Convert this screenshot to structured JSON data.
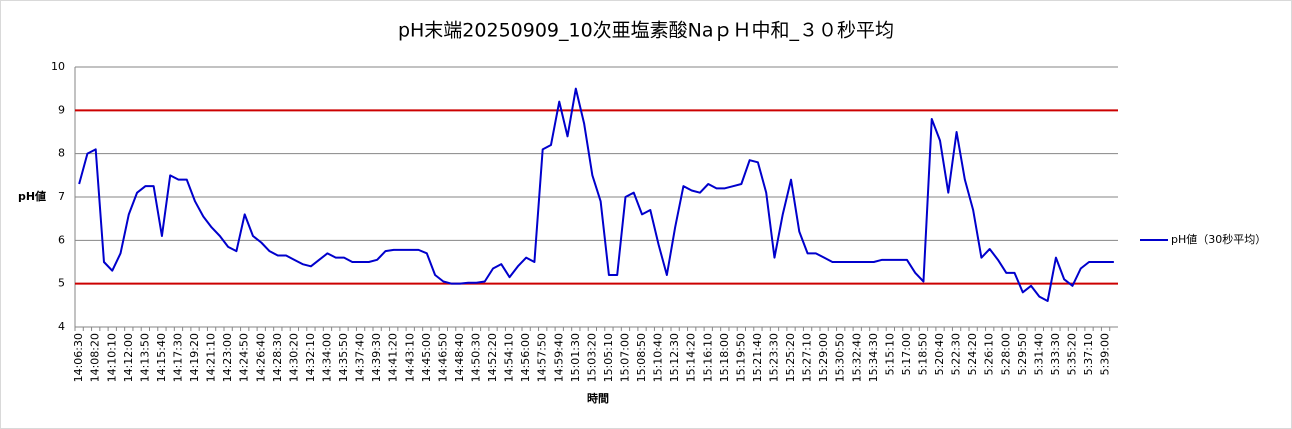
{
  "chart_data": {
    "type": "line",
    "title": "pH末端20250909_10次亜塩素酸NaｐＨ中和_３０秒平均",
    "x_label": "時間",
    "y_label": "pH値",
    "categories": [
      "14:06:30",
      null,
      "14:08:20",
      null,
      "14:10:10",
      null,
      "14:12:00",
      null,
      "14:13:50",
      null,
      "14:15:40",
      null,
      "14:17:30",
      null,
      "14:19:20",
      null,
      "14:21:10",
      null,
      "14:23:00",
      null,
      "14:24:50",
      null,
      "14:26:40",
      null,
      "14:28:30",
      null,
      "14:30:20",
      null,
      "14:32:10",
      null,
      "14:34:00",
      null,
      "14:35:50",
      null,
      "14:37:40",
      null,
      "14:39:30",
      null,
      "14:41:20",
      null,
      "14:43:10",
      null,
      "14:45:00",
      null,
      "14:46:50",
      null,
      "14:48:40",
      null,
      "14:50:30",
      null,
      "14:52:20",
      null,
      "14:54:10",
      null,
      "14:56:00",
      null,
      "14:57:50",
      null,
      "14:59:40",
      null,
      "15:01:30",
      null,
      "15:03:20",
      null,
      "15:05:10",
      null,
      "15:07:00",
      null,
      "15:08:50",
      null,
      "15:10:40",
      null,
      "15:12:30",
      null,
      "15:14:20",
      null,
      "15:16:10",
      null,
      "15:18:00",
      null,
      "15:19:50",
      null,
      "15:21:40",
      null,
      "15:23:30",
      null,
      "15:25:20",
      null,
      "15:27:10",
      null,
      "15:29:00",
      null,
      "15:30:50",
      null,
      "15:32:40",
      null,
      "15:34:30",
      null,
      "5:15:10",
      null,
      "5:17:00",
      null,
      "5:18:50",
      null,
      "5:20:40",
      null,
      "5:22:30",
      null,
      "5:24:20",
      null,
      "5:26:10",
      null,
      "5:28:00",
      null,
      "5:29:50",
      null,
      "5:31:40",
      null,
      "5:33:30",
      null,
      "5:35:20",
      null,
      "5:37:10",
      null,
      "5:39:00",
      null
    ],
    "series": [
      {
        "name": "pH値（30秒平均）",
        "color": "#0000cc",
        "values": [
          7.3,
          8.0,
          8.1,
          5.5,
          5.3,
          5.7,
          6.6,
          7.1,
          7.25,
          7.25,
          6.1,
          7.5,
          7.4,
          7.4,
          6.9,
          6.55,
          6.3,
          6.1,
          5.85,
          5.75,
          6.6,
          6.1,
          5.95,
          5.75,
          5.65,
          5.65,
          5.55,
          5.45,
          5.4,
          5.55,
          5.7,
          5.6,
          5.6,
          5.5,
          5.5,
          5.5,
          5.55,
          5.75,
          5.78,
          5.78,
          5.78,
          5.78,
          5.7,
          5.2,
          5.05,
          5.0,
          5.0,
          5.02,
          5.02,
          5.05,
          5.35,
          5.45,
          5.15,
          5.4,
          5.6,
          5.5,
          8.1,
          8.2,
          9.2,
          8.4,
          9.5,
          8.7,
          7.5,
          6.9,
          5.2,
          5.2,
          7.0,
          7.1,
          6.6,
          6.7,
          5.9,
          5.2,
          6.3,
          7.25,
          7.15,
          7.1,
          7.3,
          7.2,
          7.2,
          7.25,
          7.3,
          7.85,
          7.8,
          7.1,
          5.6,
          6.6,
          7.4,
          6.2,
          5.7,
          5.7,
          5.6,
          5.5,
          5.5,
          5.5,
          5.5,
          5.5,
          5.5,
          5.55,
          5.55,
          5.55,
          5.55,
          5.25,
          5.05,
          8.8,
          8.3,
          7.1,
          8.5,
          7.4,
          6.7,
          5.6,
          5.8,
          5.55,
          5.25,
          5.25,
          4.8,
          4.95,
          4.7,
          4.6,
          5.6,
          5.1,
          4.95,
          5.35,
          5.5,
          5.5,
          5.5,
          5.5
        ]
      }
    ],
    "reference_lines": [
      {
        "value": 9,
        "color": "#cc0000"
      },
      {
        "value": 5,
        "color": "#cc0000"
      }
    ],
    "ylim": [
      4,
      10
    ],
    "yticks": [
      4,
      5,
      6,
      7,
      8,
      9,
      10
    ],
    "grid": true,
    "legend": "right"
  }
}
